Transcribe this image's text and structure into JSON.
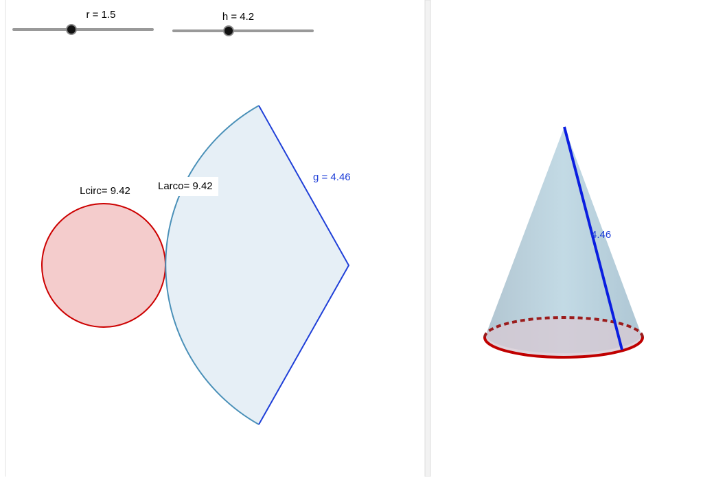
{
  "sliders": [
    {
      "label": "r = 1.5"
    },
    {
      "label": "h = 4.2"
    }
  ],
  "graphics2d": {
    "circle_label": "Lcirc= 9.42",
    "arc_label": "Larco= 9.42",
    "generatrix_label": "g = 4.46"
  },
  "graphics3d": {
    "generatrix_label": "4.46"
  }
}
